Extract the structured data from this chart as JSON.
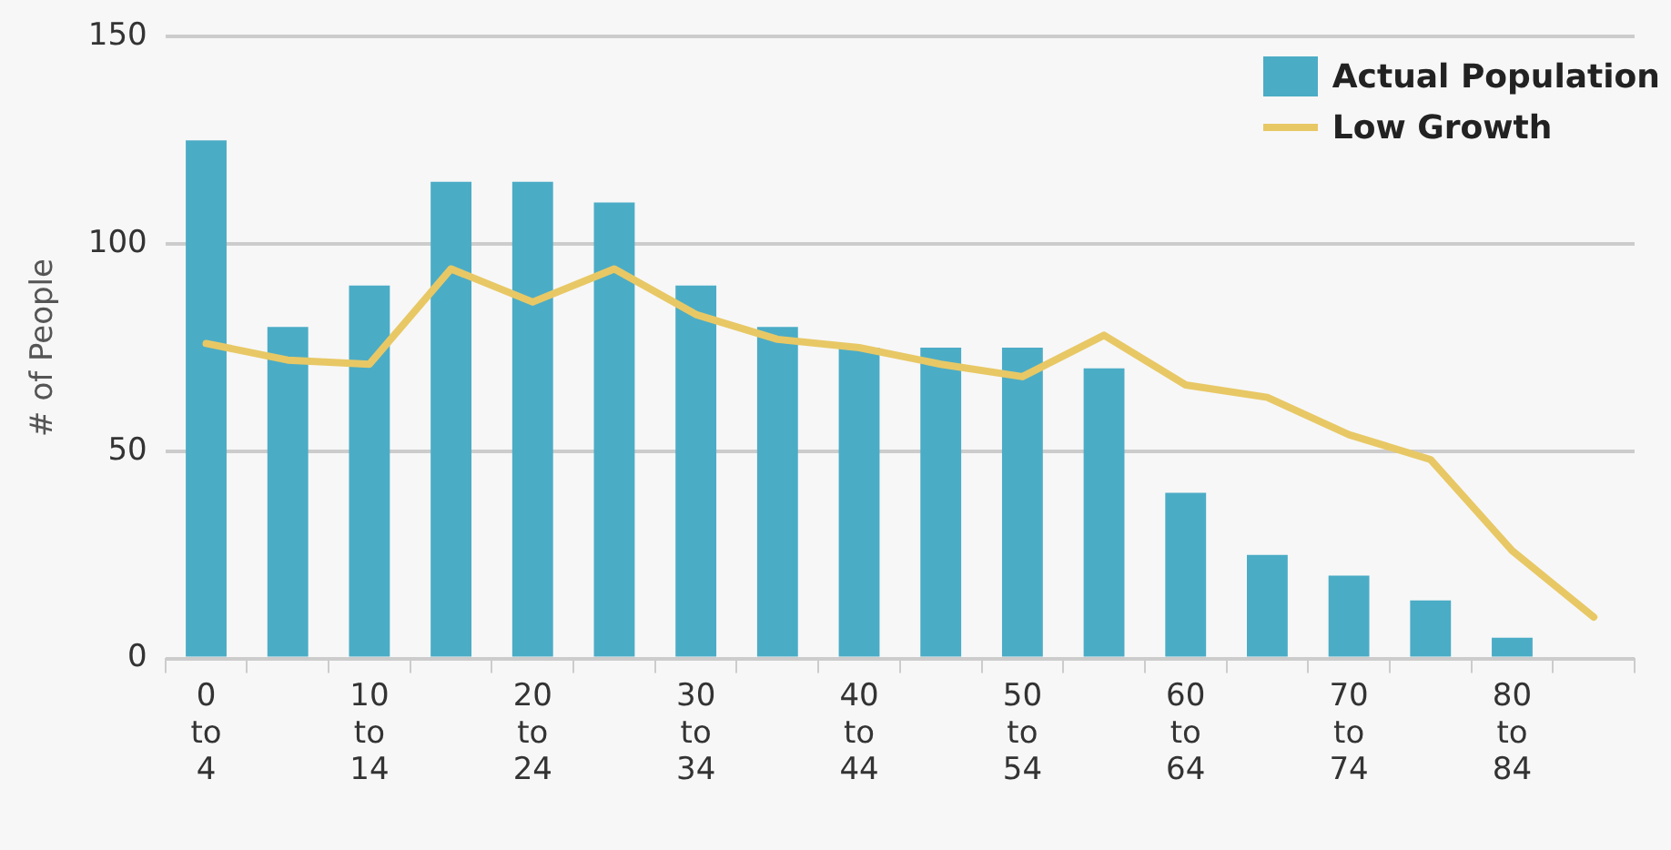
{
  "chart_data": {
    "type": "bar",
    "ylabel": "# of People",
    "categories": [
      "0 to 4",
      null,
      "10 to 14",
      null,
      "20 to 24",
      null,
      "30 to 34",
      null,
      "40 to 44",
      null,
      "50 to 54",
      null,
      "60 to 64",
      null,
      "70 to 74",
      null,
      "80 to 84",
      null
    ],
    "series": [
      {
        "name": "Actual Population",
        "color": "#4bacc6",
        "values": [
          125,
          80,
          90,
          115,
          115,
          110,
          90,
          80,
          75,
          75,
          75,
          70,
          40,
          25,
          20,
          14,
          5,
          null
        ]
      },
      {
        "name": "Low Growth",
        "type": "line",
        "color": "#e8c865",
        "values": [
          76,
          72,
          71,
          94,
          86,
          94,
          83,
          77,
          75,
          71,
          68,
          78,
          66,
          63,
          54,
          48,
          26,
          10
        ]
      }
    ],
    "ylim": [
      0,
      150
    ],
    "yticks": [
      0,
      50,
      100,
      150
    ],
    "grid": "y",
    "legend": "top right",
    "marker": "none"
  }
}
